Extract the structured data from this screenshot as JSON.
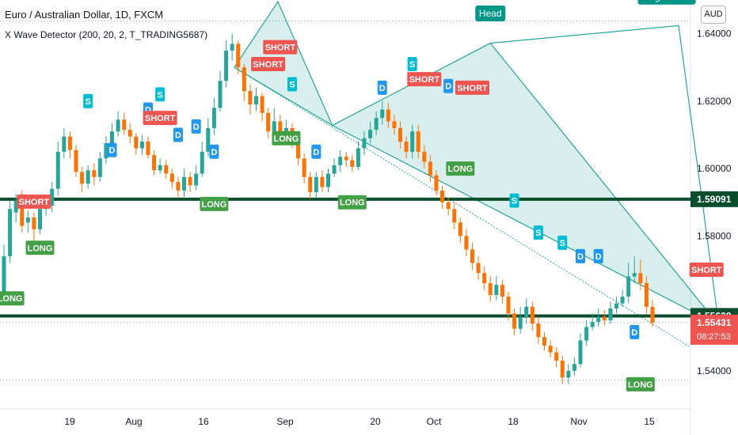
{
  "header": {
    "title": "Euro / Australian Dollar, 1D, FXCM",
    "indicator": "X Wave Detector (200, 20, 2, T_TRADING5687)",
    "currency": "AUD"
  },
  "colors": {
    "bull": "#26a69a",
    "bear": "#ff7100",
    "level_line": "#0b4d2d",
    "pattern": "#26a69a",
    "short_label": "#f05450",
    "long_label": "#43a047",
    "s_label": "#00bcd4",
    "d_label": "#2196f3",
    "price_tag": "#ef5350"
  },
  "chart_data": {
    "type": "candlestick",
    "title": "Euro / Australian Dollar, 1D, FXCM",
    "x_ticks": [
      "19",
      "Aug",
      "16",
      "Sep",
      "20",
      "Oct",
      "18",
      "Nov",
      "15"
    ],
    "y_ticks": [
      "1.64000",
      "1.62000",
      "1.60000",
      "1.58000",
      "1.54000"
    ],
    "ylim": [
      1.528,
      1.65
    ],
    "levels": [
      1.59091,
      1.55628
    ],
    "candles": [
      {
        "o": 1.562,
        "c": 1.574,
        "h": 1.5775,
        "l": 1.56
      },
      {
        "o": 1.574,
        "c": 1.588,
        "h": 1.5905,
        "l": 1.572
      },
      {
        "o": 1.587,
        "c": 1.5905,
        "h": 1.5925,
        "l": 1.584
      },
      {
        "o": 1.5905,
        "c": 1.583,
        "h": 1.5935,
        "l": 1.581
      },
      {
        "o": 1.584,
        "c": 1.5855,
        "h": 1.5875,
        "l": 1.581
      },
      {
        "o": 1.5855,
        "c": 1.582,
        "h": 1.587,
        "l": 1.5785
      },
      {
        "o": 1.582,
        "c": 1.588,
        "h": 1.591,
        "l": 1.5805
      },
      {
        "o": 1.588,
        "c": 1.589,
        "h": 1.5915,
        "l": 1.586
      },
      {
        "o": 1.589,
        "c": 1.594,
        "h": 1.596,
        "l": 1.587
      },
      {
        "o": 1.594,
        "c": 1.605,
        "h": 1.608,
        "l": 1.592
      },
      {
        "o": 1.605,
        "c": 1.6095,
        "h": 1.612,
        "l": 1.603
      },
      {
        "o": 1.6095,
        "c": 1.6055,
        "h": 1.611,
        "l": 1.603
      },
      {
        "o": 1.6055,
        "c": 1.599,
        "h": 1.607,
        "l": 1.5975
      },
      {
        "o": 1.599,
        "c": 1.5955,
        "h": 1.6005,
        "l": 1.593
      },
      {
        "o": 1.5955,
        "c": 1.5995,
        "h": 1.601,
        "l": 1.594
      },
      {
        "o": 1.5995,
        "c": 1.5975,
        "h": 1.6015,
        "l": 1.595
      },
      {
        "o": 1.5975,
        "c": 1.603,
        "h": 1.605,
        "l": 1.596
      },
      {
        "o": 1.603,
        "c": 1.6075,
        "h": 1.6095,
        "l": 1.6015
      },
      {
        "o": 1.6075,
        "c": 1.611,
        "h": 1.6135,
        "l": 1.606
      },
      {
        "o": 1.611,
        "c": 1.6145,
        "h": 1.617,
        "l": 1.6095
      },
      {
        "o": 1.6145,
        "c": 1.6115,
        "h": 1.6165,
        "l": 1.61
      },
      {
        "o": 1.6115,
        "c": 1.6095,
        "h": 1.6135,
        "l": 1.6075
      },
      {
        "o": 1.6095,
        "c": 1.606,
        "h": 1.6105,
        "l": 1.604
      },
      {
        "o": 1.606,
        "c": 1.608,
        "h": 1.61,
        "l": 1.604
      },
      {
        "o": 1.608,
        "c": 1.604,
        "h": 1.6095,
        "l": 1.603
      },
      {
        "o": 1.604,
        "c": 1.5995,
        "h": 1.6055,
        "l": 1.598
      },
      {
        "o": 1.5995,
        "c": 1.601,
        "h": 1.603,
        "l": 1.5985
      },
      {
        "o": 1.601,
        "c": 1.5985,
        "h": 1.6025,
        "l": 1.597
      },
      {
        "o": 1.5985,
        "c": 1.596,
        "h": 1.6,
        "l": 1.594
      },
      {
        "o": 1.596,
        "c": 1.5935,
        "h": 1.5975,
        "l": 1.5915
      },
      {
        "o": 1.5935,
        "c": 1.5975,
        "h": 1.6,
        "l": 1.5915
      },
      {
        "o": 1.5975,
        "c": 1.595,
        "h": 1.599,
        "l": 1.593
      },
      {
        "o": 1.595,
        "c": 1.5985,
        "h": 1.601,
        "l": 1.5935
      },
      {
        "o": 1.5985,
        "c": 1.605,
        "h": 1.608,
        "l": 1.5975
      },
      {
        "o": 1.605,
        "c": 1.612,
        "h": 1.615,
        "l": 1.6035
      },
      {
        "o": 1.612,
        "c": 1.618,
        "h": 1.621,
        "l": 1.61
      },
      {
        "o": 1.618,
        "c": 1.626,
        "h": 1.629,
        "l": 1.617
      },
      {
        "o": 1.626,
        "c": 1.635,
        "h": 1.638,
        "l": 1.624
      },
      {
        "o": 1.635,
        "c": 1.637,
        "h": 1.64,
        "l": 1.632
      },
      {
        "o": 1.637,
        "c": 1.63,
        "h": 1.638,
        "l": 1.628
      },
      {
        "o": 1.63,
        "c": 1.623,
        "h": 1.631,
        "l": 1.62
      },
      {
        "o": 1.623,
        "c": 1.619,
        "h": 1.625,
        "l": 1.616
      },
      {
        "o": 1.619,
        "c": 1.6215,
        "h": 1.624,
        "l": 1.617
      },
      {
        "o": 1.6215,
        "c": 1.6165,
        "h": 1.6225,
        "l": 1.614
      },
      {
        "o": 1.6165,
        "c": 1.611,
        "h": 1.618,
        "l": 1.609
      },
      {
        "o": 1.611,
        "c": 1.614,
        "h": 1.618,
        "l": 1.61
      },
      {
        "o": 1.614,
        "c": 1.61,
        "h": 1.616,
        "l": 1.608
      },
      {
        "o": 1.61,
        "c": 1.612,
        "h": 1.6145,
        "l": 1.608
      },
      {
        "o": 1.612,
        "c": 1.6085,
        "h": 1.6135,
        "l": 1.606
      },
      {
        "o": 1.6085,
        "c": 1.603,
        "h": 1.61,
        "l": 1.601
      },
      {
        "o": 1.603,
        "c": 1.5975,
        "h": 1.6045,
        "l": 1.5955
      },
      {
        "o": 1.5975,
        "c": 1.593,
        "h": 1.599,
        "l": 1.591
      },
      {
        "o": 1.593,
        "c": 1.5975,
        "h": 1.599,
        "l": 1.5915
      },
      {
        "o": 1.5975,
        "c": 1.5945,
        "h": 1.5995,
        "l": 1.593
      },
      {
        "o": 1.5945,
        "c": 1.5985,
        "h": 1.6,
        "l": 1.593
      },
      {
        "o": 1.5985,
        "c": 1.601,
        "h": 1.603,
        "l": 1.5975
      },
      {
        "o": 1.601,
        "c": 1.6035,
        "h": 1.6055,
        "l": 1.599
      },
      {
        "o": 1.6035,
        "c": 1.6025,
        "h": 1.605,
        "l": 1.6005
      },
      {
        "o": 1.6025,
        "c": 1.6005,
        "h": 1.604,
        "l": 1.599
      },
      {
        "o": 1.6005,
        "c": 1.606,
        "h": 1.608,
        "l": 1.5995
      },
      {
        "o": 1.606,
        "c": 1.609,
        "h": 1.611,
        "l": 1.604
      },
      {
        "o": 1.609,
        "c": 1.6115,
        "h": 1.614,
        "l": 1.6075
      },
      {
        "o": 1.6115,
        "c": 1.615,
        "h": 1.617,
        "l": 1.61
      },
      {
        "o": 1.615,
        "c": 1.6175,
        "h": 1.62,
        "l": 1.613
      },
      {
        "o": 1.6175,
        "c": 1.614,
        "h": 1.6195,
        "l": 1.612
      },
      {
        "o": 1.614,
        "c": 1.612,
        "h": 1.616,
        "l": 1.61
      },
      {
        "o": 1.612,
        "c": 1.608,
        "h": 1.614,
        "l": 1.606
      },
      {
        "o": 1.608,
        "c": 1.605,
        "h": 1.6095,
        "l": 1.603
      },
      {
        "o": 1.605,
        "c": 1.611,
        "h": 1.613,
        "l": 1.603
      },
      {
        "o": 1.611,
        "c": 1.605,
        "h": 1.613,
        "l": 1.603
      },
      {
        "o": 1.605,
        "c": 1.602,
        "h": 1.607,
        "l": 1.6
      },
      {
        "o": 1.602,
        "c": 1.598,
        "h": 1.604,
        "l": 1.596
      },
      {
        "o": 1.598,
        "c": 1.5935,
        "h": 1.5995,
        "l": 1.592
      },
      {
        "o": 1.5935,
        "c": 1.59,
        "h": 1.595,
        "l": 1.588
      },
      {
        "o": 1.59,
        "c": 1.588,
        "h": 1.5915,
        "l": 1.586
      },
      {
        "o": 1.588,
        "c": 1.584,
        "h": 1.59,
        "l": 1.582
      },
      {
        "o": 1.584,
        "c": 1.58,
        "h": 1.5855,
        "l": 1.578
      },
      {
        "o": 1.58,
        "c": 1.576,
        "h": 1.582,
        "l": 1.574
      },
      {
        "o": 1.576,
        "c": 1.572,
        "h": 1.578,
        "l": 1.57
      },
      {
        "o": 1.572,
        "c": 1.569,
        "h": 1.574,
        "l": 1.567
      },
      {
        "o": 1.569,
        "c": 1.566,
        "h": 1.571,
        "l": 1.564
      },
      {
        "o": 1.566,
        "c": 1.5625,
        "h": 1.568,
        "l": 1.5605
      },
      {
        "o": 1.5625,
        "c": 1.5655,
        "h": 1.568,
        "l": 1.561
      },
      {
        "o": 1.5655,
        "c": 1.562,
        "h": 1.567,
        "l": 1.56
      },
      {
        "o": 1.562,
        "c": 1.557,
        "h": 1.5635,
        "l": 1.555
      },
      {
        "o": 1.557,
        "c": 1.5525,
        "h": 1.5585,
        "l": 1.5505
      },
      {
        "o": 1.5525,
        "c": 1.556,
        "h": 1.559,
        "l": 1.551
      },
      {
        "o": 1.556,
        "c": 1.559,
        "h": 1.5615,
        "l": 1.554
      },
      {
        "o": 1.559,
        "c": 1.554,
        "h": 1.5605,
        "l": 1.552
      },
      {
        "o": 1.554,
        "c": 1.55,
        "h": 1.556,
        "l": 1.548
      },
      {
        "o": 1.55,
        "c": 1.5475,
        "h": 1.5515,
        "l": 1.546
      },
      {
        "o": 1.5475,
        "c": 1.5455,
        "h": 1.549,
        "l": 1.544
      },
      {
        "o": 1.5455,
        "c": 1.543,
        "h": 1.547,
        "l": 1.541
      },
      {
        "o": 1.543,
        "c": 1.538,
        "h": 1.5445,
        "l": 1.536
      },
      {
        "o": 1.538,
        "c": 1.54,
        "h": 1.542,
        "l": 1.536
      },
      {
        "o": 1.54,
        "c": 1.542,
        "h": 1.544,
        "l": 1.5385
      },
      {
        "o": 1.542,
        "c": 1.549,
        "h": 1.551,
        "l": 1.541
      },
      {
        "o": 1.549,
        "c": 1.553,
        "h": 1.555,
        "l": 1.5475
      },
      {
        "o": 1.553,
        "c": 1.5545,
        "h": 1.557,
        "l": 1.552
      },
      {
        "o": 1.5545,
        "c": 1.556,
        "h": 1.5585,
        "l": 1.553
      },
      {
        "o": 1.556,
        "c": 1.555,
        "h": 1.558,
        "l": 1.5535
      },
      {
        "o": 1.555,
        "c": 1.5585,
        "h": 1.5605,
        "l": 1.554
      },
      {
        "o": 1.5585,
        "c": 1.56,
        "h": 1.562,
        "l": 1.557
      },
      {
        "o": 1.56,
        "c": 1.562,
        "h": 1.564,
        "l": 1.559
      },
      {
        "o": 1.562,
        "c": 1.568,
        "h": 1.572,
        "l": 1.56
      },
      {
        "o": 1.568,
        "c": 1.569,
        "h": 1.574,
        "l": 1.566
      },
      {
        "o": 1.569,
        "c": 1.566,
        "h": 1.573,
        "l": 1.564
      },
      {
        "o": 1.566,
        "c": 1.559,
        "h": 1.568,
        "l": 1.557
      },
      {
        "o": 1.559,
        "c": 1.5543,
        "h": 1.561,
        "l": 1.553
      }
    ],
    "labels": [
      {
        "text": "LONG",
        "i": 1,
        "price": 1.5615,
        "kind": "long"
      },
      {
        "text": "SHORT",
        "i": 5,
        "price": 1.5902,
        "kind": "short"
      },
      {
        "text": "LONG",
        "i": 6,
        "price": 1.5765,
        "kind": "long"
      },
      {
        "text": "S",
        "i": 14,
        "price": 1.62,
        "kind": "s"
      },
      {
        "text": "D",
        "i": 18,
        "price": 1.6055,
        "kind": "d"
      },
      {
        "text": "D",
        "i": 24,
        "price": 1.6175,
        "kind": "d"
      },
      {
        "text": "S",
        "i": 26,
        "price": 1.622,
        "kind": "s"
      },
      {
        "text": "SHORT",
        "i": 26,
        "price": 1.615,
        "kind": "short"
      },
      {
        "text": "D",
        "i": 29,
        "price": 1.61,
        "kind": "d"
      },
      {
        "text": "D",
        "i": 32,
        "price": 1.6125,
        "kind": "d"
      },
      {
        "text": "D",
        "i": 35,
        "price": 1.605,
        "kind": "d"
      },
      {
        "text": "LONG",
        "i": 35,
        "price": 1.5895,
        "kind": "long"
      },
      {
        "text": "S",
        "i": 43,
        "price": 1.653,
        "kind": "s"
      },
      {
        "text": "SHORT",
        "i": 46,
        "price": 1.636,
        "kind": "short"
      },
      {
        "text": "SHORT",
        "i": 44,
        "price": 1.631,
        "kind": "short"
      },
      {
        "text": "S",
        "i": 48,
        "price": 1.625,
        "kind": "s"
      },
      {
        "text": "LONG",
        "i": 47,
        "price": 1.609,
        "kind": "long"
      },
      {
        "text": "D",
        "i": 52,
        "price": 1.605,
        "kind": "d"
      },
      {
        "text": "LONG",
        "i": 58,
        "price": 1.59,
        "kind": "long"
      },
      {
        "text": "D",
        "i": 63,
        "price": 1.624,
        "kind": "d"
      },
      {
        "text": "S",
        "i": 68,
        "price": 1.631,
        "kind": "s"
      },
      {
        "text": "SHORT",
        "i": 70,
        "price": 1.6265,
        "kind": "short"
      },
      {
        "text": "D",
        "i": 74,
        "price": 1.6245,
        "kind": "d"
      },
      {
        "text": "SHORT",
        "i": 78,
        "price": 1.624,
        "kind": "short"
      },
      {
        "text": "LONG",
        "i": 76,
        "price": 1.6,
        "kind": "long"
      },
      {
        "text": "S",
        "i": 85,
        "price": 1.5905,
        "kind": "s"
      },
      {
        "text": "S",
        "i": 89,
        "price": 1.581,
        "kind": "s"
      },
      {
        "text": "S",
        "i": 93,
        "price": 1.578,
        "kind": "s"
      },
      {
        "text": "D",
        "i": 96,
        "price": 1.574,
        "kind": "d"
      },
      {
        "text": "D",
        "i": 99,
        "price": 1.574,
        "kind": "d"
      },
      {
        "text": "D",
        "i": 105,
        "price": 1.5515,
        "kind": "d"
      },
      {
        "text": "LONG",
        "i": 106,
        "price": 1.536,
        "kind": "long"
      },
      {
        "text": "SHORT",
        "i": 117,
        "price": 1.57,
        "kind": "short"
      }
    ],
    "pattern_labels": [
      {
        "text": "Head",
        "i": 81,
        "price": 1.646
      },
      {
        "text": "Right Sho",
        "i": 120,
        "price": 1.651
      }
    ],
    "price_tags": [
      {
        "text": "1.59091",
        "price": 1.59091,
        "style": "level"
      },
      {
        "text": "1.55628",
        "price": 1.55628,
        "style": "level"
      },
      {
        "text": "1.55431",
        "price": 1.55431,
        "style": "current",
        "sub": "08:27:53"
      }
    ]
  }
}
